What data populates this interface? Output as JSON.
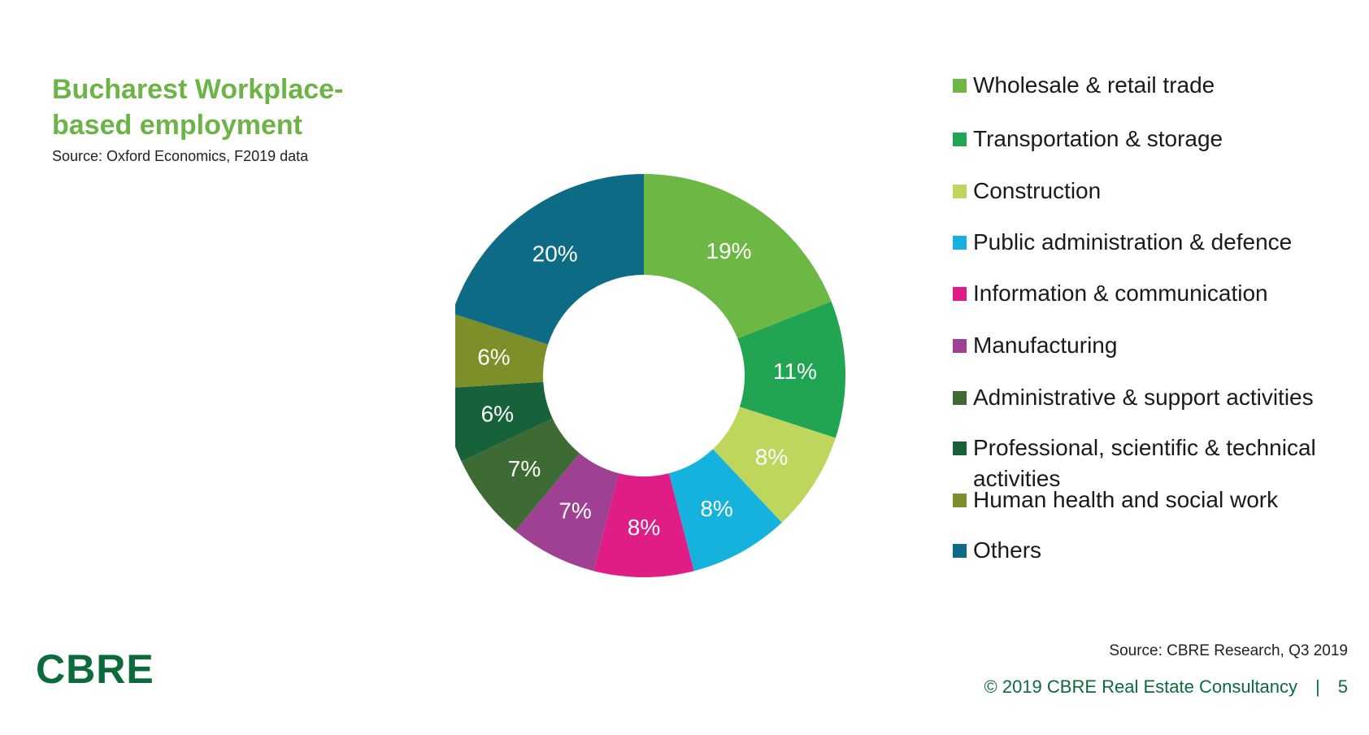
{
  "header": {
    "title": "Bucharest Workplace-based employment",
    "subtitle": "Source: Oxford Economics, F2019 data"
  },
  "chart_data": {
    "type": "pie",
    "donut": true,
    "legend_position": "right",
    "categories": [
      "Wholesale & retail trade",
      "Transportation & storage",
      "Construction",
      "Public administration & defence",
      "Information & communication",
      "Manufacturing",
      "Administrative & support activities",
      "Professional, scientific & technical activities",
      "Human health and social work",
      "Others"
    ],
    "values": [
      19,
      11,
      8,
      8,
      8,
      7,
      7,
      6,
      6,
      20
    ],
    "labels": [
      "19%",
      "11%",
      "8%",
      "8%",
      "8%",
      "7%",
      "7%",
      "6%",
      "6%",
      "20%"
    ],
    "colors": [
      "#6db845",
      "#22a553",
      "#bfd65c",
      "#14b2dd",
      "#e01d86",
      "#9e4193",
      "#3e6b34",
      "#17623a",
      "#7c8f28",
      "#0d6b85"
    ]
  },
  "source": "Source: CBRE Research, Q3 2019",
  "logo": {
    "text": "CBRE"
  },
  "footer": {
    "copyright": "© 2019 CBRE Real Estate Consultancy",
    "separator": "|",
    "page_number": "5"
  }
}
